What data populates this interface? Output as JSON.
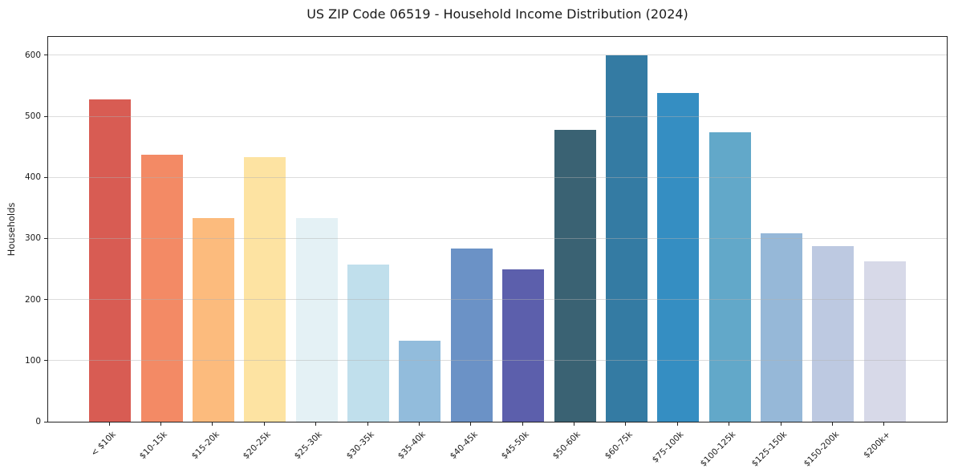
{
  "chart_data": {
    "type": "bar",
    "title": "US ZIP Code 06519 - Household Income Distribution (2024)",
    "xlabel": "",
    "ylabel": "Households",
    "categories": [
      "< $10k",
      "$10-15k",
      "$15-20k",
      "$20-25k",
      "$25-30k",
      "$30-35k",
      "$35-40k",
      "$40-45k",
      "$45-50k",
      "$50-60k",
      "$60-75k",
      "$75-100k",
      "$100-125k",
      "$125-150k",
      "$150-200k",
      "$200k+"
    ],
    "values": [
      528,
      437,
      333,
      433,
      334,
      257,
      133,
      283,
      249,
      478,
      600,
      538,
      474,
      308,
      288,
      262
    ],
    "bar_colors": [
      "#d85c53",
      "#f38a65",
      "#fcbb7d",
      "#fde3a2",
      "#e4f1f5",
      "#c0dfec",
      "#92bcdc",
      "#6b92c6",
      "#5c5fac",
      "#3a6273",
      "#347ba3",
      "#358ec2",
      "#62a8c9",
      "#96b8d8",
      "#bdc9e1",
      "#d7d9e8"
    ],
    "yticks": [
      0,
      100,
      200,
      300,
      400,
      500,
      600
    ],
    "ylim": [
      0,
      630
    ],
    "grid": "horizontal-only",
    "legend": "none",
    "plot_background": "#ffffff",
    "spine_color": "#222222"
  }
}
